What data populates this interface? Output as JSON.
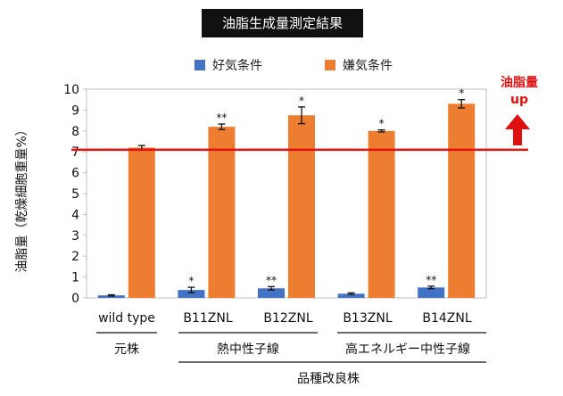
{
  "chart_data": {
    "type": "bar",
    "title": "油脂生成量測定結果",
    "ylabel": "油脂量（乾燥細胞重量%）",
    "ylim": [
      0,
      10
    ],
    "yticks": [
      0,
      1,
      2,
      3,
      4,
      5,
      6,
      7,
      8,
      9,
      10
    ],
    "categories": [
      "wild type",
      "B11ZNL",
      "B12ZNL",
      "B13ZNL",
      "B14ZNL"
    ],
    "series": [
      {
        "name": "好気条件",
        "color": "#4472C4",
        "values": [
          0.12,
          0.38,
          0.46,
          0.2,
          0.5
        ],
        "errors": [
          0.03,
          0.13,
          0.08,
          0.04,
          0.06
        ],
        "significance": [
          "",
          "*",
          "**",
          "",
          "**"
        ]
      },
      {
        "name": "嫌気条件",
        "color": "#ED7D31",
        "values": [
          7.2,
          8.2,
          8.75,
          8.0,
          9.3
        ],
        "errors": [
          0.1,
          0.13,
          0.4,
          0.05,
          0.2
        ],
        "significance": [
          "",
          "**",
          "*",
          "*",
          "*"
        ]
      }
    ],
    "reference_line": {
      "value": 7.1,
      "color": "#E01010"
    },
    "annotation": {
      "line1": "油脂量",
      "line2": "up",
      "color": "#E01010"
    },
    "groups": {
      "wild": "元株",
      "heat": "熱中性子線",
      "ion": "高エネルギー中性子線",
      "improved": "品種改良株"
    },
    "grid": false,
    "legend_position": "top"
  }
}
